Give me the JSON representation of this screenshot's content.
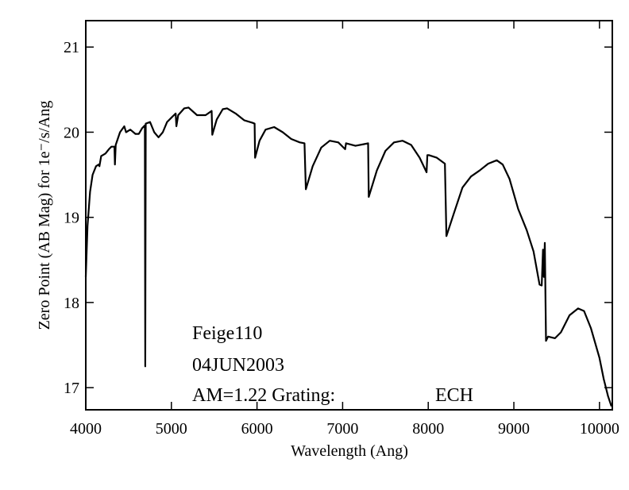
{
  "chart_data": {
    "type": "line",
    "xlabel": "Wavelength (Ang)",
    "ylabel": "Zero Point (AB Mag) for 1e⁻/s/Ang",
    "annotations": [
      "Feige110",
      "04JUN2003",
      "AM=1.22  Grating:",
      "ECH"
    ],
    "xlim": [
      4000,
      10150
    ],
    "ylim": [
      16.74,
      21.31
    ],
    "xticks": [
      4000,
      5000,
      6000,
      7000,
      8000,
      9000,
      10000
    ],
    "yticks": [
      17,
      18,
      19,
      20,
      21
    ],
    "color": "#000000",
    "x": [
      4000,
      4020,
      4050,
      4080,
      4120,
      4150,
      4160,
      4180,
      4230,
      4270,
      4300,
      4335,
      4340,
      4350,
      4400,
      4450,
      4470,
      4520,
      4580,
      4620,
      4660,
      4690,
      4695,
      4700,
      4750,
      4800,
      4850,
      4900,
      4950,
      5000,
      5050,
      5058,
      5080,
      5150,
      5200,
      5300,
      5400,
      5470,
      5478,
      5530,
      5600,
      5650,
      5750,
      5850,
      5950,
      5972,
      5978,
      6030,
      6100,
      6200,
      6300,
      6400,
      6500,
      6555,
      6570,
      6650,
      6750,
      6850,
      6950,
      7030,
      7040,
      7150,
      7250,
      7298,
      7305,
      7400,
      7500,
      7600,
      7700,
      7800,
      7900,
      7980,
      7990,
      8010,
      8100,
      8195,
      8212,
      8300,
      8400,
      8500,
      8600,
      8700,
      8800,
      8870,
      8950,
      9050,
      9150,
      9230,
      9300,
      9325,
      9340,
      9350,
      9362,
      9375,
      9400,
      9480,
      9550,
      9650,
      9750,
      9820,
      9900,
      10000,
      10050,
      10100,
      10140
    ],
    "values": [
      18.3,
      18.9,
      19.3,
      19.5,
      19.6,
      19.62,
      19.6,
      19.72,
      19.75,
      19.8,
      19.83,
      19.83,
      19.62,
      19.85,
      20.0,
      20.07,
      20.0,
      20.03,
      19.98,
      19.98,
      20.05,
      20.08,
      17.25,
      20.1,
      20.12,
      20.0,
      19.94,
      20.0,
      20.12,
      20.17,
      20.22,
      20.07,
      20.2,
      20.28,
      20.29,
      20.2,
      20.2,
      20.25,
      19.97,
      20.15,
      20.27,
      20.28,
      20.22,
      20.14,
      20.11,
      20.1,
      19.7,
      19.9,
      20.03,
      20.06,
      20.0,
      19.92,
      19.88,
      19.87,
      19.33,
      19.6,
      19.82,
      19.9,
      19.88,
      19.8,
      19.87,
      19.84,
      19.86,
      19.87,
      19.24,
      19.55,
      19.78,
      19.88,
      19.9,
      19.85,
      19.7,
      19.53,
      19.73,
      19.73,
      19.7,
      19.63,
      18.78,
      19.05,
      19.35,
      19.48,
      19.55,
      19.63,
      19.67,
      19.62,
      19.45,
      19.1,
      18.85,
      18.6,
      18.21,
      18.2,
      18.62,
      18.3,
      18.7,
      17.55,
      17.6,
      17.58,
      17.65,
      17.85,
      17.93,
      17.9,
      17.7,
      17.35,
      17.1,
      16.9,
      16.78
    ]
  }
}
